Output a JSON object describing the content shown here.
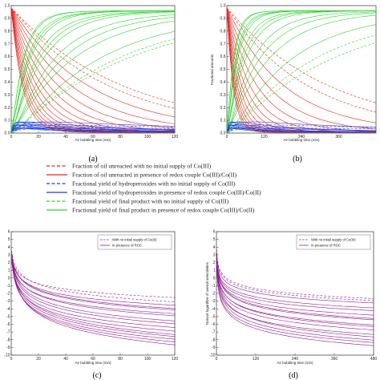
{
  "chart_data": [
    {
      "type": "line",
      "panel_label": "(a)",
      "xlabel": "Air bubbling time (min)",
      "ylabel": "",
      "xticks": [
        0,
        20,
        40,
        60,
        80,
        100,
        120
      ],
      "yticks": [
        0.0,
        0.1,
        0.2,
        0.3,
        0.4,
        0.5,
        0.6,
        0.7,
        0.8,
        0.9,
        1.0
      ],
      "xlim": [
        0,
        120
      ],
      "ylim": [
        0,
        1
      ],
      "grid": false,
      "colors": {
        "unreacted": "#e8231e",
        "hydroperoxide": "#1f3fe0",
        "final": "#2fd631"
      }
    },
    {
      "type": "line",
      "panel_label": "(b)",
      "xlabel": "Air bubbling time (min)",
      "ylabel": "Fractional amounts",
      "xticks": [
        0,
        120,
        240,
        360
      ],
      "yticks": [
        0.0,
        0.1,
        0.2,
        0.3,
        0.4,
        0.5,
        0.6,
        0.7,
        0.8,
        0.9,
        1.0
      ],
      "xlim": [
        0,
        480
      ],
      "ylim": [
        0,
        1
      ],
      "grid": false,
      "colors": {
        "unreacted": "#e8231e",
        "hydroperoxide": "#1f3fe0",
        "final": "#2fd631"
      }
    },
    {
      "type": "line",
      "panel_label": "(c)",
      "xlabel": "Air bubbling time (min)",
      "ylabel": "",
      "xticks": [
        0,
        20,
        40,
        60,
        80,
        100,
        120
      ],
      "yticks": [
        -10,
        -9,
        -8,
        -7,
        -6,
        -5,
        -4,
        -3,
        -2,
        -1,
        0,
        1,
        2,
        3,
        4,
        5,
        6
      ],
      "xlim": [
        0,
        120
      ],
      "ylim": [
        -10,
        6
      ],
      "legend_position": "top-right",
      "legend": [
        "With no initial supply of Co(III)",
        "In presence of ROC"
      ],
      "color": "#8e1a8e"
    },
    {
      "type": "line",
      "panel_label": "(d)",
      "xlabel": "Air bubbling time (min)",
      "ylabel": "Natural logarithm of overall selectivities",
      "xticks": [
        0,
        120,
        240,
        360,
        480
      ],
      "yticks": [
        -10,
        -9,
        -8,
        -7,
        -6,
        -5,
        -4,
        -3,
        -2,
        -1,
        0,
        1,
        2,
        3,
        4,
        5,
        6
      ],
      "xlim": [
        0,
        480
      ],
      "ylim": [
        -10,
        6
      ],
      "legend_position": "top-right",
      "legend": [
        "With no initial supply of Co(III)",
        "In presence of ROC"
      ],
      "color": "#8e1a8e"
    }
  ],
  "legend": [
    {
      "text": "Fraction of oil unreacted with no initial supply of Co(III)",
      "color": "#e8231e",
      "dashed": true
    },
    {
      "text": "Fraction of oil unreacted in presence of redox couple Co(III)/Co(II)",
      "color": "#e8231e",
      "dashed": false
    },
    {
      "text": "Fractional yield of hydroperoxides with no initial supply of Co(III)",
      "color": "#1f3fe0",
      "dashed": true
    },
    {
      "text": "Fractional yield of hydroperoxides in presence of redox couple Co(III)/Co(II)",
      "color": "#1f3fe0",
      "dashed": false
    },
    {
      "text": "Fractional yield of final product with no initial supply of Co(III)",
      "color": "#2fd631",
      "dashed": true
    },
    {
      "text": "Fractional yield of final product in presence of redox couple Co(III)/Co(II)",
      "color": "#2fd631",
      "dashed": false
    }
  ]
}
